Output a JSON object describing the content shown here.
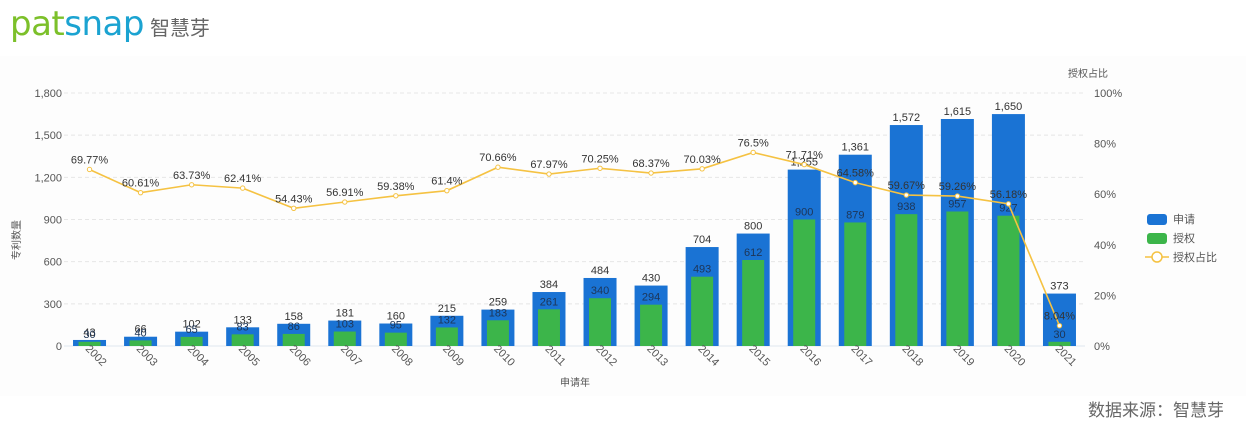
{
  "header": {
    "logo_part1": "pat",
    "logo_part2": "snap",
    "logo_cn": "智慧芽"
  },
  "footer": {
    "source": "数据来源：智慧芽"
  },
  "colors": {
    "applications": "#1a73d4",
    "grants": "#3cb54a",
    "ratio_line": "#f5c242",
    "grid": "#e6e6e6",
    "axis_text": "#555555",
    "label_text": "#333333"
  },
  "chart_data": {
    "type": "bar",
    "title": "",
    "xlabel": "申请年",
    "ylabel": "专利数量",
    "y2label": "授权占比",
    "ylim": [
      0,
      1800
    ],
    "y2lim": [
      0,
      100
    ],
    "yticks": [
      "0",
      "300",
      "600",
      "900",
      "1,200",
      "1,500",
      "1,800"
    ],
    "y2ticks": [
      "0%",
      "20%",
      "40%",
      "60%",
      "80%",
      "100%"
    ],
    "grid": true,
    "legend_position": "right",
    "categories": [
      "2002",
      "2003",
      "2004",
      "2005",
      "2006",
      "2007",
      "2008",
      "2009",
      "2010",
      "2011",
      "2012",
      "2013",
      "2014",
      "2015",
      "2016",
      "2017",
      "2018",
      "2019",
      "2020",
      "2021"
    ],
    "series": [
      {
        "name": "申请",
        "type": "bar",
        "axis": "left",
        "values": [
          43,
          66,
          102,
          133,
          158,
          181,
          160,
          215,
          259,
          384,
          484,
          430,
          704,
          800,
          1255,
          1361,
          1572,
          1615,
          1650,
          373
        ],
        "labels": [
          "43",
          "66",
          "102",
          "133",
          "158",
          "181",
          "160",
          "215",
          "259",
          "384",
          "484",
          "430",
          "704",
          "800",
          "1,255",
          "1,361",
          "1,572",
          "1,615",
          "1,650",
          "373"
        ]
      },
      {
        "name": "授权",
        "type": "bar",
        "axis": "left",
        "values": [
          30,
          40,
          65,
          83,
          86,
          103,
          95,
          132,
          183,
          261,
          340,
          294,
          493,
          612,
          900,
          879,
          938,
          957,
          927,
          30
        ],
        "labels": [
          "30",
          "40",
          "65",
          "83",
          "86",
          "103",
          "95",
          "132",
          "183",
          "261",
          "340",
          "294",
          "493",
          "612",
          "900",
          "879",
          "938",
          "957",
          "927",
          "30"
        ]
      },
      {
        "name": "授权占比",
        "type": "line",
        "axis": "right",
        "values": [
          69.77,
          60.61,
          63.73,
          62.41,
          54.43,
          56.91,
          59.38,
          61.4,
          70.66,
          67.97,
          70.25,
          68.37,
          70.03,
          76.5,
          71.71,
          64.58,
          59.67,
          59.26,
          56.18,
          8.04
        ],
        "labels": [
          "69.77%",
          "60.61%",
          "63.73%",
          "62.41%",
          "54.43%",
          "56.91%",
          "59.38%",
          "61.4%",
          "70.66%",
          "67.97%",
          "70.25%",
          "68.37%",
          "70.03%",
          "76.5%",
          "71.71%",
          "64.58%",
          "59.67%",
          "59.26%",
          "56.18%",
          "8.04%"
        ]
      }
    ]
  }
}
